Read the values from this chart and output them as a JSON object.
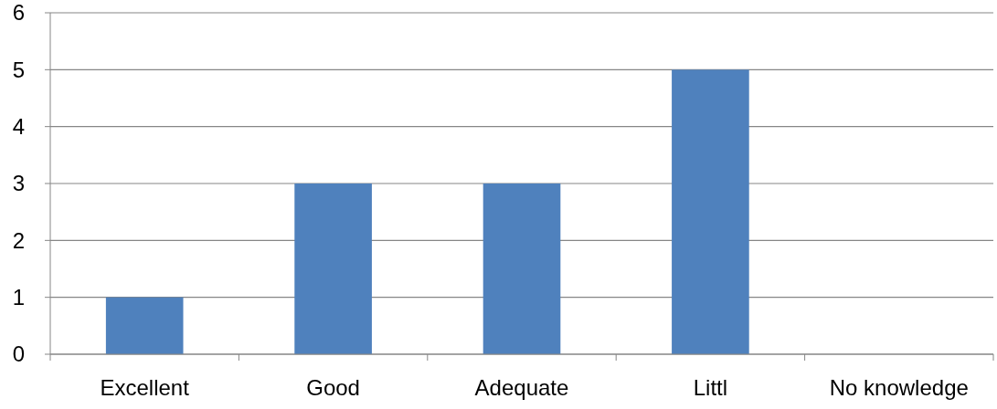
{
  "chart_data": {
    "type": "bar",
    "categories": [
      "Excellent",
      "Good",
      "Adequate",
      "Littl",
      "No knowledge"
    ],
    "values": [
      1,
      3,
      3,
      5,
      0
    ],
    "color": "#4f81bd",
    "ylim": [
      0,
      6
    ],
    "yticks": [
      0,
      1,
      2,
      3,
      4,
      5,
      6
    ],
    "grid": "y"
  }
}
